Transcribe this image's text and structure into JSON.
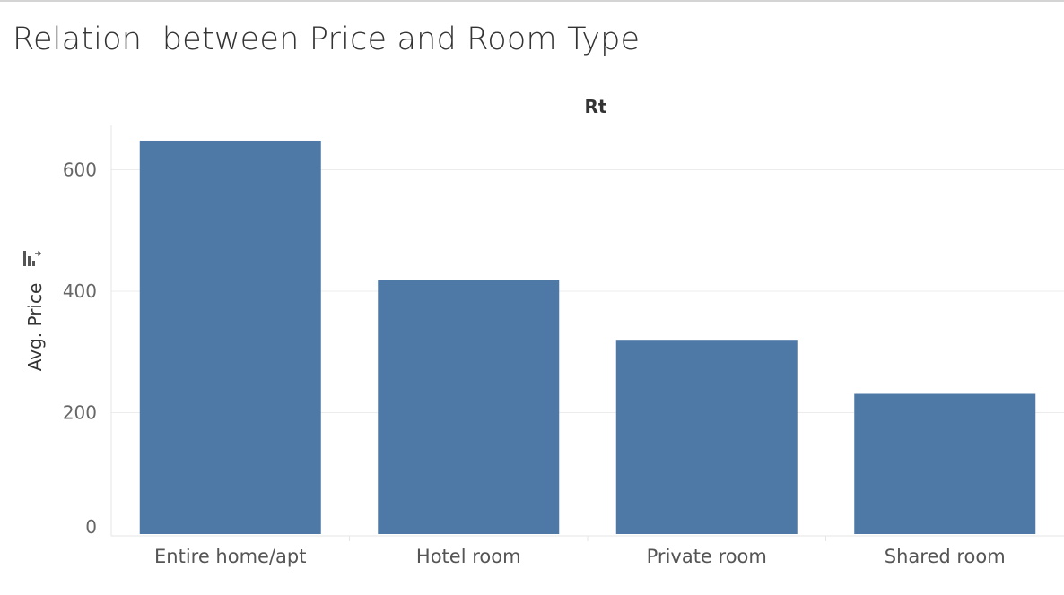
{
  "title": "Relation  between Price and Room Type",
  "chart_data": {
    "type": "bar",
    "title": "Relation  between Price and Room Type",
    "column_header": "Rt",
    "ylabel": "Avg. Price",
    "xlabel": "",
    "categories": [
      "Entire home/apt",
      "Hotel room",
      "Private room",
      "Shared room"
    ],
    "values": [
      648,
      418,
      320,
      231
    ],
    "ylim": [
      0,
      670
    ],
    "yticks": [
      0,
      200,
      400,
      600
    ],
    "grid": true,
    "bar_color": "#4e79a7",
    "sort_icon": "sort-descending-icon"
  }
}
